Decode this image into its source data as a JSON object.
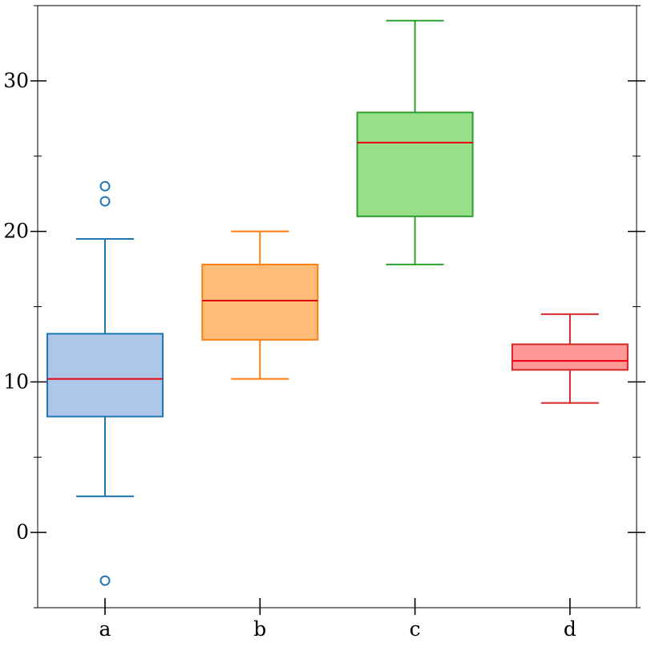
{
  "chart_data": {
    "type": "box",
    "title": "",
    "xlabel": "",
    "ylabel": "",
    "categories": [
      "a",
      "b",
      "c",
      "d"
    ],
    "ylim": [
      -5,
      35
    ],
    "y_major_ticks": [
      0,
      10,
      20,
      30
    ],
    "y_tick_labels": [
      "0",
      "10",
      "20",
      "30"
    ],
    "y_minor_ticks": [
      -5,
      5,
      15,
      25,
      35
    ],
    "grid": false,
    "median_color": "#e8000b",
    "series": [
      {
        "category": "a",
        "whisker_low": 2.4,
        "q1": 7.7,
        "median": 10.2,
        "q3": 13.2,
        "whisker_high": 19.5,
        "outliers": [
          -3.2,
          22.0,
          23.0
        ],
        "edge_color": "#1f77b4",
        "fill_color": "#aec7e8"
      },
      {
        "category": "b",
        "whisker_low": 10.2,
        "q1": 12.8,
        "median": 15.4,
        "q3": 17.8,
        "whisker_high": 20.0,
        "outliers": [],
        "edge_color": "#ff7f0e",
        "fill_color": "#ffbb78"
      },
      {
        "category": "c",
        "whisker_low": 17.8,
        "q1": 21.0,
        "median": 25.9,
        "q3": 27.9,
        "whisker_high": 34.0,
        "outliers": [],
        "edge_color": "#2ca02c",
        "fill_color": "#98df8a"
      },
      {
        "category": "d",
        "whisker_low": 8.6,
        "q1": 10.8,
        "median": 11.4,
        "q3": 12.5,
        "whisker_high": 14.5,
        "outliers": [],
        "edge_color": "#d62728",
        "fill_color": "#ff9896"
      }
    ]
  }
}
